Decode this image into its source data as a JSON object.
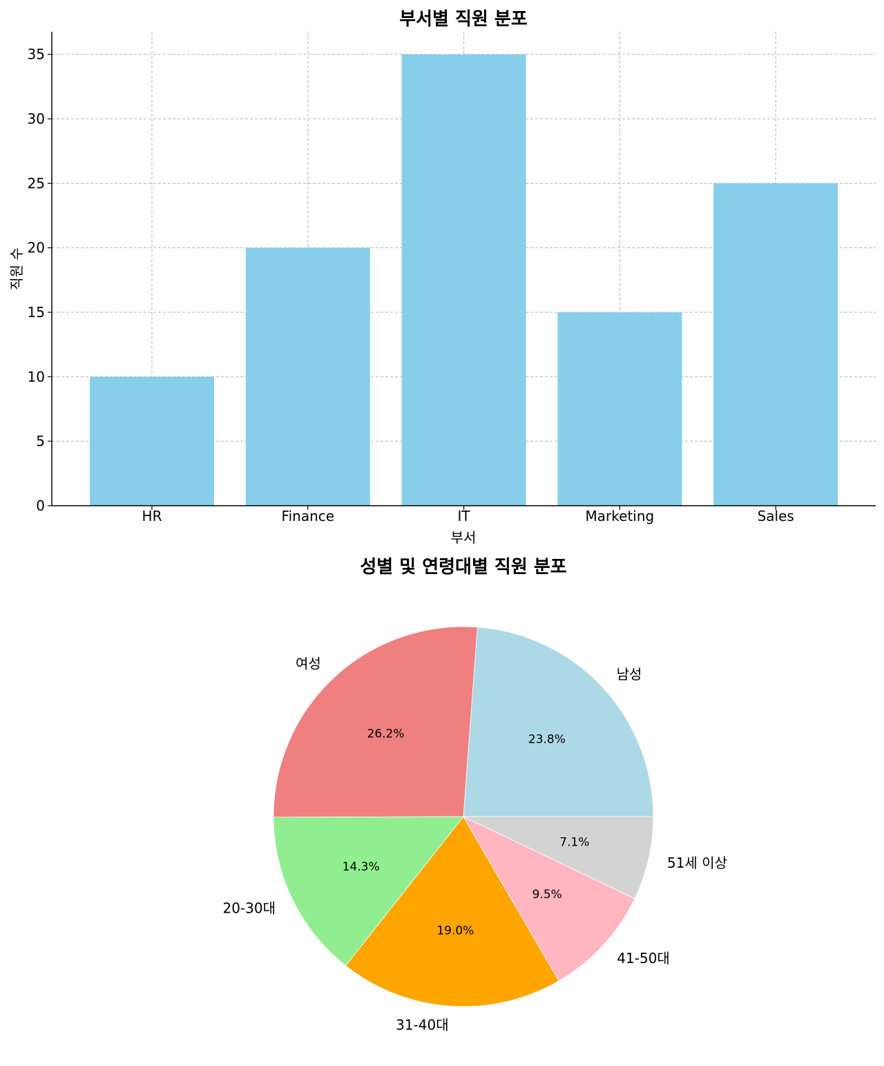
{
  "chart_data": [
    {
      "type": "bar",
      "title": "부서별 직원 분포",
      "xlabel": "부서",
      "ylabel": "직원 수",
      "categories": [
        "HR",
        "Finance",
        "IT",
        "Marketing",
        "Sales"
      ],
      "values": [
        10,
        20,
        35,
        15,
        25
      ],
      "ylim": [
        0,
        36.75
      ],
      "yticks": [
        0,
        5,
        10,
        15,
        20,
        25,
        30,
        35
      ],
      "grid": true,
      "bar_color": "#87CEEB"
    },
    {
      "type": "pie",
      "title": "성별 및 연령대별 직원 분포",
      "labels": [
        "남성",
        "여성",
        "20-30대",
        "31-40대",
        "41-50대",
        "51세 이상"
      ],
      "values": [
        23.8,
        26.2,
        14.3,
        19.0,
        9.5,
        7.1
      ],
      "value_labels": [
        "23.8%",
        "26.2%",
        "14.3%",
        "19.0%",
        "9.5%",
        "7.1%"
      ],
      "colors": [
        "#ADD8E6",
        "#F08080",
        "#90EE90",
        "#FFA500",
        "#FFB6C1",
        "#D3D3D3"
      ],
      "start_angle_deg": 0,
      "direction": "counterclockwise"
    }
  ]
}
